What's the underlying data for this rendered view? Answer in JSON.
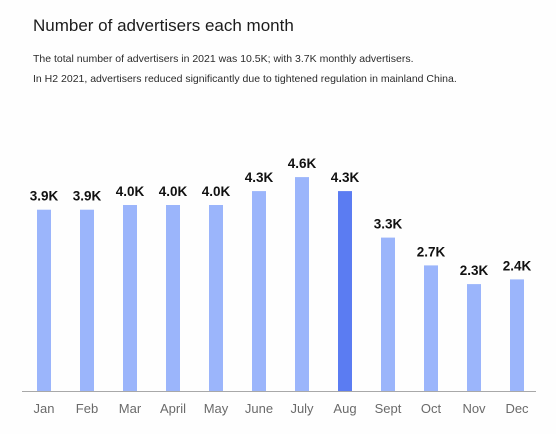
{
  "header": {
    "title": "Number of advertisers each month",
    "description_line_1": "The total number of advertisers in 2021 was 10.5K; with 3.7K monthly advertisers.",
    "description_line_2": "In H2 2021, advertisers reduced significantly due to tightened regulation in mainland China."
  },
  "chart_data": {
    "type": "bar",
    "title": "Number of advertisers each month",
    "categories": [
      "Jan",
      "Feb",
      "Mar",
      "April",
      "May",
      "June",
      "July",
      "Aug",
      "Sept",
      "Oct",
      "Nov",
      "Dec"
    ],
    "values": [
      3.9,
      3.9,
      4.0,
      4.0,
      4.0,
      4.3,
      4.6,
      4.3,
      3.3,
      2.7,
      2.3,
      2.4
    ],
    "value_labels": [
      "3.9K",
      "3.9K",
      "4.0K",
      "4.0K",
      "4.0K",
      "4.3K",
      "4.6K",
      "4.3K",
      "3.3K",
      "2.7K",
      "2.3K",
      "2.4K"
    ],
    "unit": "K",
    "highlighted_category": "Aug",
    "xlabel": "",
    "ylabel": "",
    "ylim": [
      0,
      5
    ],
    "grid": false,
    "legend": "none",
    "colors": {
      "bar": "#9bb5fb",
      "highlight": "#5b7cf2",
      "baseline": "#a8a8a8"
    }
  }
}
